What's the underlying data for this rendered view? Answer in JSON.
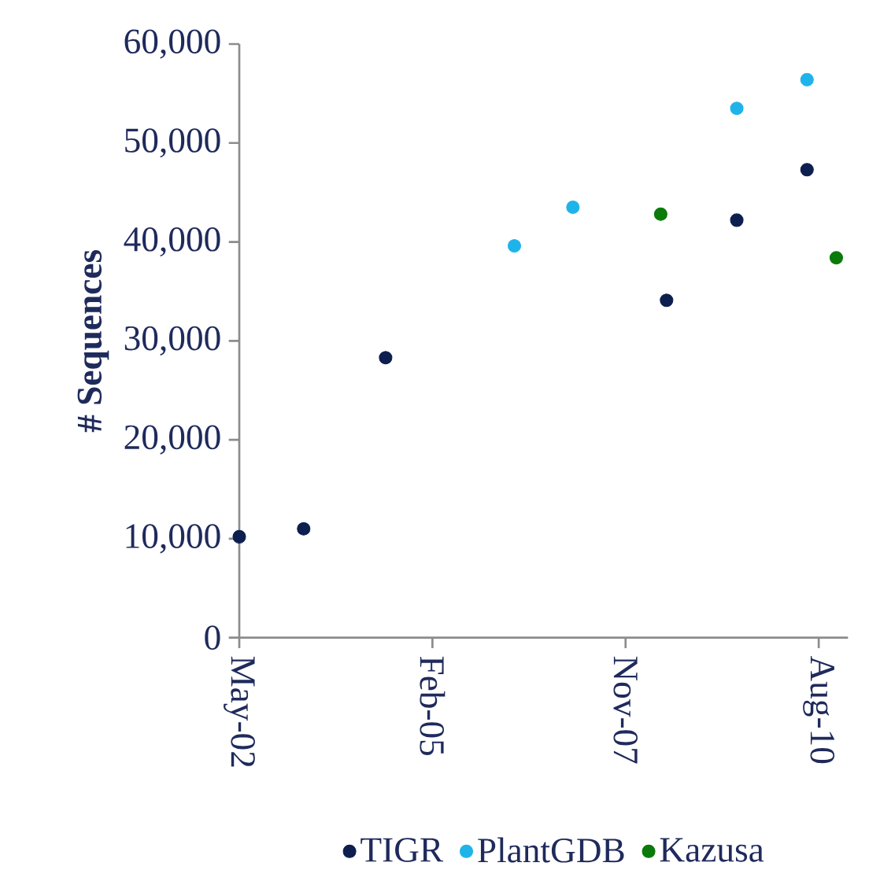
{
  "chart_data": {
    "type": "scatter",
    "ylabel": "# Sequences",
    "x": [
      "2002-05",
      "2003-04",
      "2004-06",
      "2008-06",
      "2009-06",
      "2010-06"
    ],
    "series": [
      {
        "name": "TIGR",
        "color": "#0d1f4f",
        "values": [
          10200,
          11000,
          28300,
          34100,
          42200,
          47300
        ]
      },
      {
        "name": "PlantGDB",
        "color": "#1eb4ea",
        "x": [
          "2006-04",
          "2007-02",
          "2009-06",
          "2010-06"
        ],
        "values": [
          39600,
          43500,
          53500,
          56400
        ]
      },
      {
        "name": "Kazusa",
        "color": "#0a7a0a",
        "x": [
          "2008-05",
          "2010-11"
        ],
        "values": [
          42800,
          38400
        ]
      }
    ],
    "xlim": [
      "2002-05",
      "2011-01"
    ],
    "xticks": [
      {
        "value": "2002-05",
        "label": "May-02"
      },
      {
        "value": "2005-02",
        "label": "Feb-05"
      },
      {
        "value": "2007-11",
        "label": "Nov-07"
      },
      {
        "value": "2010-08",
        "label": "Aug-10"
      }
    ],
    "ylim": [
      0,
      60000
    ],
    "yticks": [
      {
        "value": 0,
        "label": "0"
      },
      {
        "value": 10000,
        "label": "10,000"
      },
      {
        "value": 20000,
        "label": "20,000"
      },
      {
        "value": 30000,
        "label": "30,000"
      },
      {
        "value": 40000,
        "label": "40,000"
      },
      {
        "value": 50000,
        "label": "50,000"
      },
      {
        "value": 60000,
        "label": "60,000"
      }
    ],
    "grid": false,
    "legend": "bottom"
  }
}
